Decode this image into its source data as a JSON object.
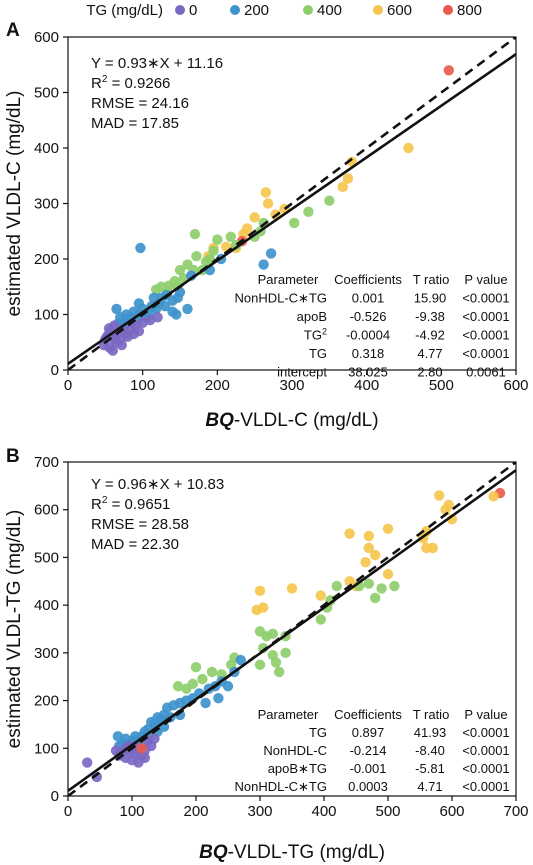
{
  "legend": {
    "title": "TG (mg/dL)",
    "items": [
      {
        "label": "0",
        "color": "#7b68c2"
      },
      {
        "label": "200",
        "color": "#3f93cc"
      },
      {
        "label": "400",
        "color": "#8fce6c"
      },
      {
        "label": "600",
        "color": "#f5c54d"
      },
      {
        "label": "800",
        "color": "#e85b4e"
      }
    ]
  },
  "chart_data": [
    {
      "type": "scatter",
      "panel": "A",
      "xlabel_bold": "BQ",
      "xlabel_rest": "-VLDL-C (mg/dL)",
      "ylabel": "estimated VLDL-C (mg/dL)",
      "xlim": [
        0,
        600
      ],
      "ylim": [
        0,
        600
      ],
      "xticks": [
        0,
        100,
        200,
        300,
        400,
        500,
        600
      ],
      "yticks": [
        0,
        100,
        200,
        300,
        400,
        500,
        600
      ],
      "stats": {
        "equation": "Y = 0.93∗X + 11.16",
        "r2_prefix": "R",
        "r2_sup": "2",
        "r2_value": " = 0.9266",
        "rmse": "RMSE = 24.16",
        "mad": "MAD = 17.85"
      },
      "fit_line": {
        "slope": 0.93,
        "intercept": 11.16
      },
      "identity_line": {
        "slope": 1,
        "intercept": 0
      },
      "table": {
        "headers": [
          "Parameter",
          "Coefficients",
          "T ratio",
          "P value"
        ],
        "rows": [
          {
            "param": "NonHDL-C∗TG",
            "sup": "",
            "coef": "0.001",
            "t": "15.90",
            "p": "<0.0001"
          },
          {
            "param": "apoB",
            "sup": "",
            "coef": "-0.526",
            "t": "-9.38",
            "p": "<0.0001"
          },
          {
            "param": "TG",
            "sup": "2",
            "coef": "-0.0004",
            "t": "-4.92",
            "p": "<0.0001"
          },
          {
            "param": "TG",
            "sup": "",
            "coef": "0.318",
            "t": "4.77",
            "p": "<0.0001"
          },
          {
            "param": "intercept",
            "sup": "",
            "coef": "38.025",
            "t": "2.80",
            "p": "0.0061"
          }
        ]
      },
      "points": [
        [
          510,
          540,
          4
        ],
        [
          456,
          400,
          3
        ],
        [
          380,
          375,
          3
        ],
        [
          375,
          345,
          3
        ],
        [
          368,
          330,
          3
        ],
        [
          265,
          320,
          3
        ],
        [
          268,
          300,
          3
        ],
        [
          290,
          290,
          3
        ],
        [
          278,
          280,
          3
        ],
        [
          250,
          275,
          3
        ],
        [
          240,
          255,
          3
        ],
        [
          235,
          245,
          3
        ],
        [
          225,
          220,
          3
        ],
        [
          212,
          222,
          3
        ],
        [
          195,
          220,
          3
        ],
        [
          188,
          205,
          3
        ],
        [
          233,
          232,
          4
        ],
        [
          350,
          305,
          2
        ],
        [
          322,
          285,
          2
        ],
        [
          303,
          265,
          2
        ],
        [
          262,
          265,
          2
        ],
        [
          258,
          250,
          2
        ],
        [
          250,
          240,
          2
        ],
        [
          225,
          225,
          2
        ],
        [
          218,
          240,
          2
        ],
        [
          200,
          235,
          2
        ],
        [
          195,
          215,
          2
        ],
        [
          190,
          200,
          2
        ],
        [
          170,
          245,
          2
        ],
        [
          172,
          205,
          2
        ],
        [
          160,
          190,
          2
        ],
        [
          168,
          180,
          2
        ],
        [
          150,
          180,
          2
        ],
        [
          155,
          165,
          2
        ],
        [
          143,
          160,
          2
        ],
        [
          147,
          150,
          2
        ],
        [
          135,
          152,
          2
        ],
        [
          125,
          150,
          2
        ],
        [
          133,
          140,
          2
        ],
        [
          118,
          145,
          2
        ],
        [
          180,
          180,
          2
        ],
        [
          185,
          195,
          2
        ],
        [
          97,
          220,
          1
        ],
        [
          272,
          210,
          1
        ],
        [
          205,
          200,
          1
        ],
        [
          190,
          180,
          1
        ],
        [
          262,
          190,
          1
        ],
        [
          165,
          170,
          1
        ],
        [
          150,
          140,
          1
        ],
        [
          147,
          130,
          1
        ],
        [
          140,
          125,
          1
        ],
        [
          132,
          135,
          1
        ],
        [
          125,
          130,
          1
        ],
        [
          122,
          120,
          1
        ],
        [
          118,
          110,
          1
        ],
        [
          112,
          115,
          1
        ],
        [
          108,
          100,
          1
        ],
        [
          105,
          95,
          1
        ],
        [
          100,
          110,
          1
        ],
        [
          96,
          100,
          1
        ],
        [
          92,
          90,
          1
        ],
        [
          88,
          105,
          1
        ],
        [
          84,
          95,
          1
        ],
        [
          80,
          85,
          1
        ],
        [
          78,
          100,
          1
        ],
        [
          75,
          90,
          1
        ],
        [
          72,
          80,
          1
        ],
        [
          70,
          95,
          1
        ],
        [
          68,
          85,
          1
        ],
        [
          65,
          110,
          1
        ],
        [
          130,
          115,
          1
        ],
        [
          140,
          105,
          1
        ],
        [
          160,
          110,
          1
        ],
        [
          145,
          100,
          1
        ],
        [
          115,
          130,
          1
        ],
        [
          95,
          120,
          1
        ],
        [
          62,
          80,
          0
        ],
        [
          58,
          70,
          0
        ],
        [
          55,
          65,
          0
        ],
        [
          52,
          60,
          0
        ],
        [
          50,
          55,
          0
        ],
        [
          48,
          45,
          0
        ],
        [
          56,
          40,
          0
        ],
        [
          60,
          35,
          0
        ],
        [
          65,
          50,
          0
        ],
        [
          70,
          55,
          0
        ],
        [
          75,
          70,
          0
        ],
        [
          80,
          60,
          0
        ],
        [
          85,
          75,
          0
        ],
        [
          90,
          80,
          0
        ],
        [
          100,
          85,
          0
        ],
        [
          110,
          90,
          0
        ],
        [
          120,
          95,
          0
        ],
        [
          60,
          60,
          0
        ],
        [
          55,
          75,
          0
        ],
        [
          68,
          68,
          0
        ],
        [
          72,
          45,
          0
        ],
        [
          62,
          55,
          0
        ],
        [
          78,
          65,
          0
        ],
        [
          88,
          65,
          0
        ],
        [
          95,
          70,
          0
        ]
      ]
    },
    {
      "type": "scatter",
      "panel": "B",
      "xlabel_bold": "BQ",
      "xlabel_rest": "-VLDL-TG (mg/dL)",
      "ylabel": "estimated VLDL-TG (mg/dL)",
      "xlim": [
        0,
        700
      ],
      "ylim": [
        0,
        700
      ],
      "xticks": [
        0,
        100,
        200,
        300,
        400,
        500,
        600,
        700
      ],
      "yticks": [
        0,
        100,
        200,
        300,
        400,
        500,
        600,
        700
      ],
      "stats": {
        "equation": "Y = 0.96∗X + 10.83",
        "r2_prefix": "R",
        "r2_sup": "2",
        "r2_value": " = 0.9651",
        "rmse": "RMSE = 28.58",
        "mad": "MAD = 22.30"
      },
      "fit_line": {
        "slope": 0.96,
        "intercept": 10.83
      },
      "identity_line": {
        "slope": 1,
        "intercept": 0
      },
      "table": {
        "headers": [
          "Parameter",
          "Coefficients",
          "T ratio",
          "P value"
        ],
        "rows": [
          {
            "param": "TG",
            "sup": "",
            "coef": "0.897",
            "t": "41.93",
            "p": "<0.0001"
          },
          {
            "param": "NonHDL-C",
            "sup": "",
            "coef": "-0.214",
            "t": "-8.40",
            "p": "<0.0001"
          },
          {
            "param": "apoB∗TG",
            "sup": "",
            "coef": "-0.001",
            "t": "-5.81",
            "p": "<0.0001"
          },
          {
            "param": "NonHDL-C∗TG",
            "sup": "",
            "coef": "0.0003",
            "t": "4.71",
            "p": "<0.0001"
          }
        ]
      },
      "points": [
        [
          675,
          635,
          4
        ],
        [
          665,
          628,
          3
        ],
        [
          590,
          600,
          3
        ],
        [
          600,
          580,
          3
        ],
        [
          595,
          610,
          3
        ],
        [
          580,
          630,
          3
        ],
        [
          560,
          555,
          3
        ],
        [
          555,
          540,
          3
        ],
        [
          560,
          520,
          3
        ],
        [
          570,
          520,
          3
        ],
        [
          500,
          560,
          3
        ],
        [
          470,
          545,
          3
        ],
        [
          470,
          520,
          3
        ],
        [
          480,
          505,
          3
        ],
        [
          465,
          490,
          3
        ],
        [
          440,
          450,
          3
        ],
        [
          450,
          440,
          3
        ],
        [
          500,
          465,
          3
        ],
        [
          440,
          550,
          3
        ],
        [
          395,
          420,
          3
        ],
        [
          350,
          435,
          3
        ],
        [
          300,
          430,
          3
        ],
        [
          295,
          390,
          3
        ],
        [
          305,
          395,
          3
        ],
        [
          510,
          440,
          2
        ],
        [
          490,
          435,
          2
        ],
        [
          480,
          415,
          2
        ],
        [
          470,
          445,
          2
        ],
        [
          455,
          440,
          2
        ],
        [
          420,
          440,
          2
        ],
        [
          410,
          410,
          2
        ],
        [
          405,
          395,
          2
        ],
        [
          395,
          370,
          2
        ],
        [
          340,
          335,
          2
        ],
        [
          320,
          340,
          2
        ],
        [
          310,
          335,
          2
        ],
        [
          300,
          345,
          2
        ],
        [
          305,
          310,
          2
        ],
        [
          320,
          295,
          2
        ],
        [
          325,
          280,
          2
        ],
        [
          300,
          275,
          2
        ],
        [
          260,
          290,
          2
        ],
        [
          255,
          275,
          2
        ],
        [
          240,
          255,
          2
        ],
        [
          225,
          260,
          2
        ],
        [
          200,
          270,
          2
        ],
        [
          210,
          245,
          2
        ],
        [
          195,
          235,
          2
        ],
        [
          185,
          225,
          2
        ],
        [
          172,
          230,
          2
        ],
        [
          330,
          260,
          2
        ],
        [
          340,
          300,
          2
        ],
        [
          270,
          285,
          1
        ],
        [
          260,
          260,
          1
        ],
        [
          240,
          240,
          1
        ],
        [
          230,
          230,
          1
        ],
        [
          220,
          225,
          1
        ],
        [
          205,
          215,
          1
        ],
        [
          195,
          205,
          1
        ],
        [
          185,
          200,
          1
        ],
        [
          175,
          195,
          1
        ],
        [
          165,
          190,
          1
        ],
        [
          155,
          185,
          1
        ],
        [
          150,
          170,
          1
        ],
        [
          145,
          160,
          1
        ],
        [
          140,
          165,
          1
        ],
        [
          135,
          150,
          1
        ],
        [
          130,
          155,
          1
        ],
        [
          125,
          140,
          1
        ],
        [
          120,
          135,
          1
        ],
        [
          115,
          125,
          1
        ],
        [
          110,
          120,
          1
        ],
        [
          105,
          125,
          1
        ],
        [
          100,
          115,
          1
        ],
        [
          95,
          110,
          1
        ],
        [
          90,
          120,
          1
        ],
        [
          85,
          110,
          1
        ],
        [
          80,
          105,
          1
        ],
        [
          78,
          125,
          1
        ],
        [
          250,
          230,
          1
        ],
        [
          235,
          205,
          1
        ],
        [
          215,
          195,
          1
        ],
        [
          175,
          170,
          1
        ],
        [
          160,
          165,
          1
        ],
        [
          150,
          145,
          1
        ],
        [
          140,
          135,
          1
        ],
        [
          125,
          125,
          1
        ],
        [
          115,
          105,
          1
        ],
        [
          105,
          100,
          1
        ],
        [
          30,
          70,
          0
        ],
        [
          45,
          40,
          0
        ],
        [
          75,
          95,
          0
        ],
        [
          80,
          85,
          0
        ],
        [
          85,
          90,
          0
        ],
        [
          90,
          100,
          0
        ],
        [
          95,
          105,
          0
        ],
        [
          100,
          95,
          0
        ],
        [
          105,
          90,
          0
        ],
        [
          110,
          100,
          0
        ],
        [
          115,
          85,
          0
        ],
        [
          120,
          95,
          0
        ],
        [
          125,
          115,
          0
        ],
        [
          130,
          105,
          0
        ],
        [
          135,
          120,
          0
        ],
        [
          100,
          75,
          0
        ],
        [
          110,
          70,
          0
        ],
        [
          120,
          80,
          0
        ],
        [
          90,
          80,
          0
        ],
        [
          95,
          100,
          0
        ],
        [
          115,
          100,
          4
        ]
      ]
    }
  ]
}
